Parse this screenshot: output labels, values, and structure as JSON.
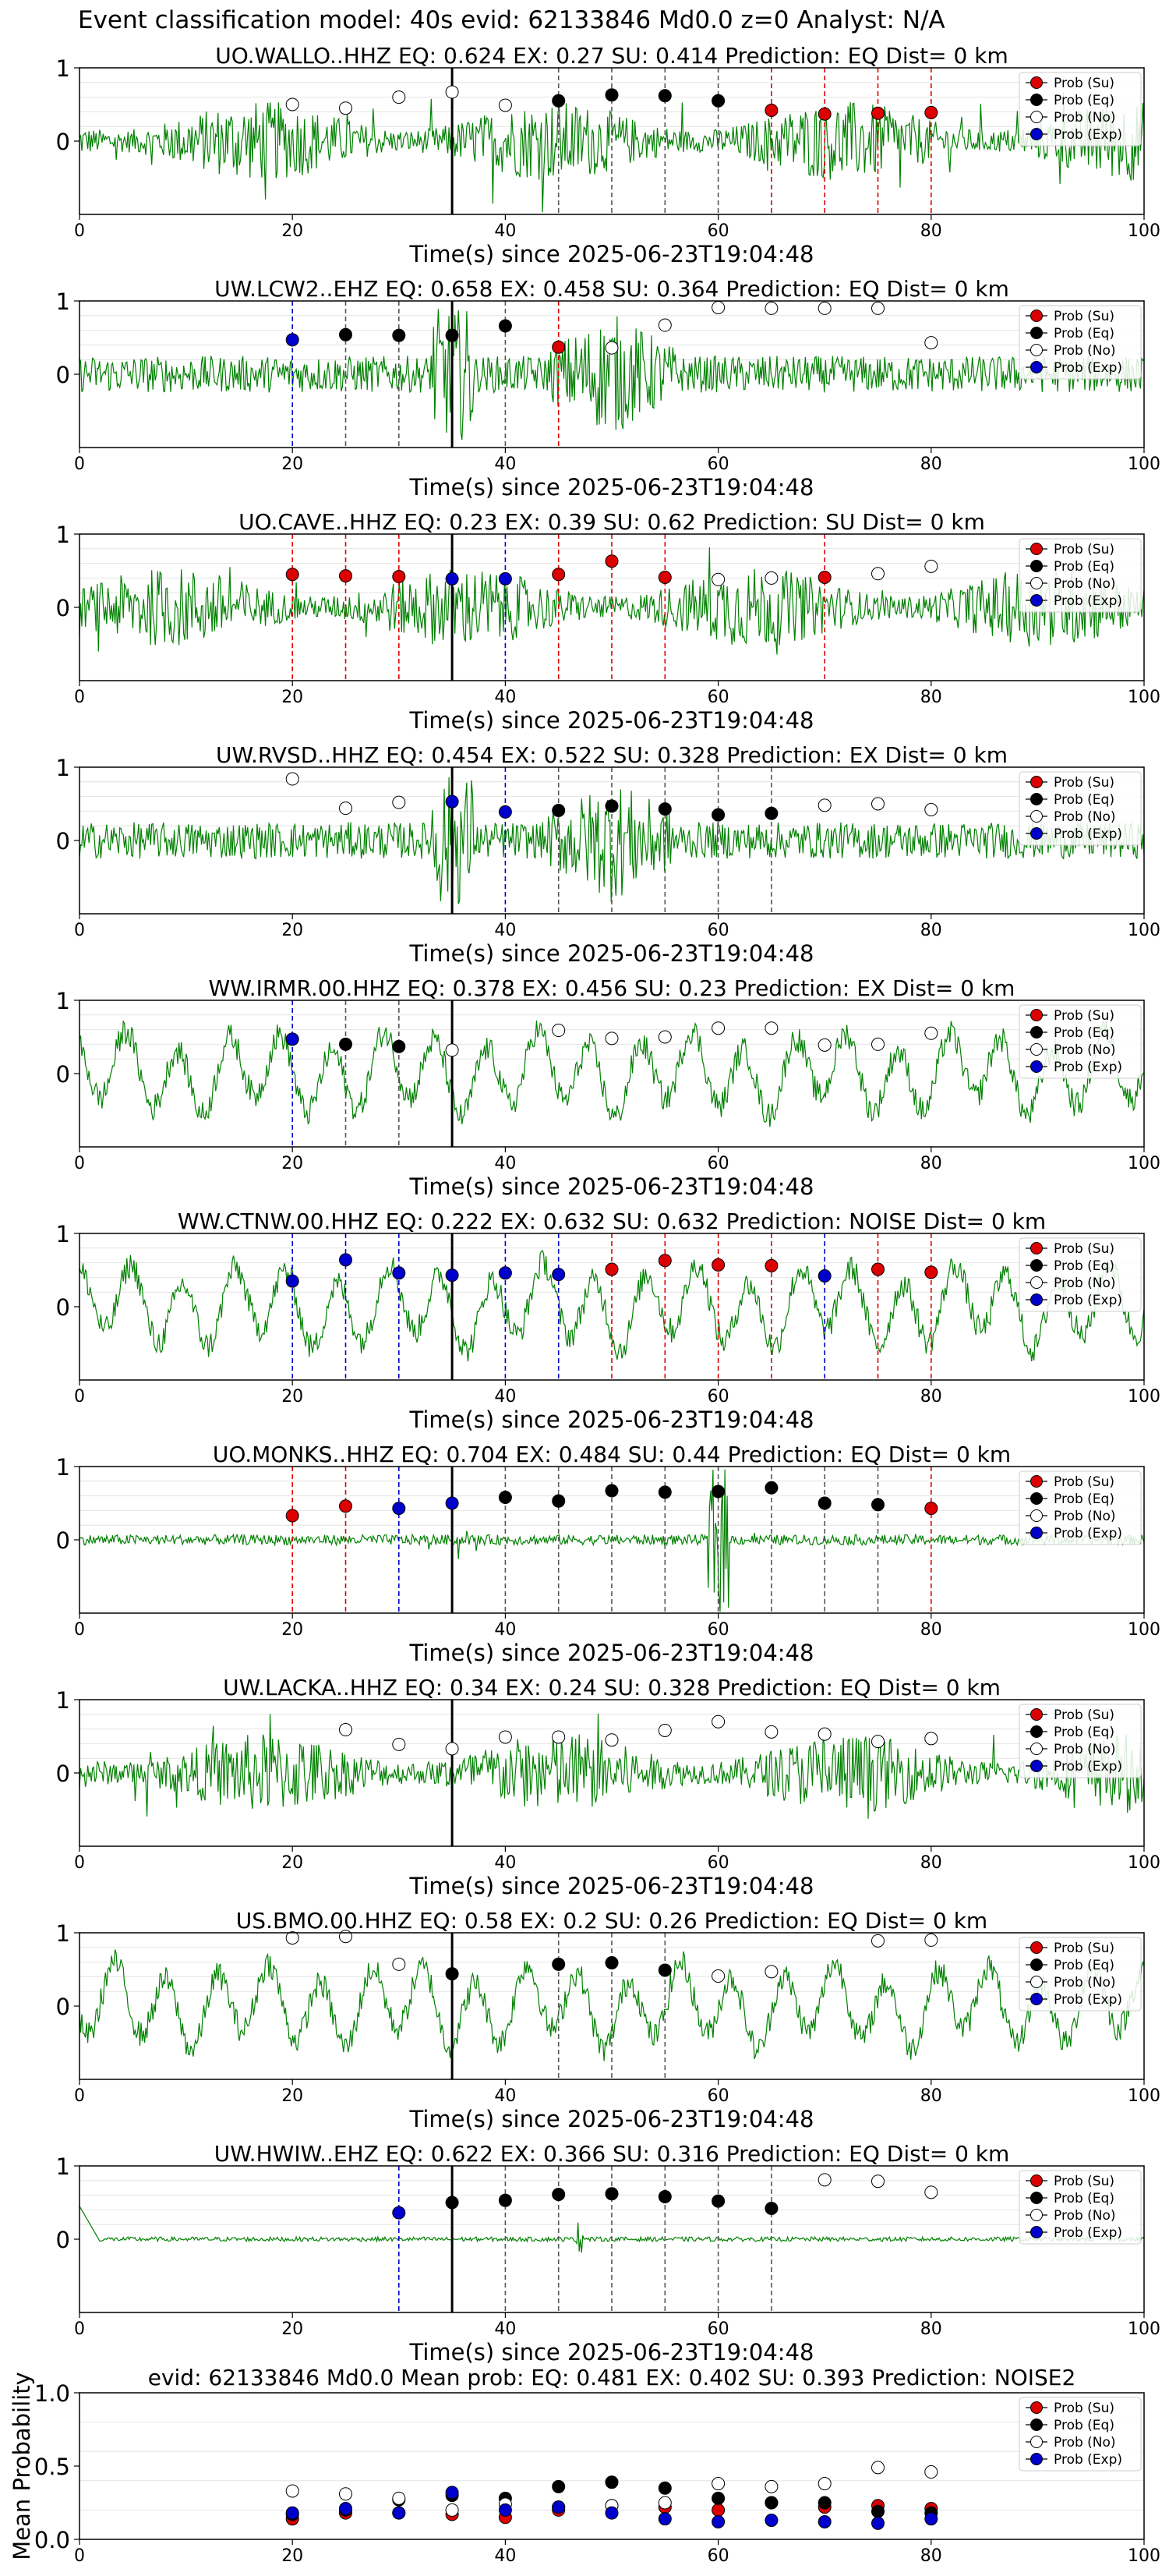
{
  "figure": {
    "suptitle": "Event classification model: 40s evid: 62133846 Md0.0 z=0 Analyst: N/A",
    "x_label": "Time(s) since 2025-06-23T19:04:48",
    "legend_entries": [
      "Prob (Su)",
      "Prob (Eq)",
      "Prob (No)",
      "Prob (Exp)"
    ],
    "colors": {
      "trace": "#008000",
      "su": "#dd0000",
      "eq": "#000000",
      "no": "#ffffff",
      "exp": "#0000cc",
      "event_line": "#000000"
    }
  },
  "chart_data": [
    {
      "type": "line",
      "title": "UO.WALLO..HHZ   EQ: 0.624  EX: 0.27  SU: 0.414   Prediction: EQ    Dist= 0 km",
      "x_ticks": [
        0,
        20,
        40,
        60,
        80,
        100
      ],
      "y_ticks": [
        0,
        1
      ],
      "xlim": [
        0,
        100
      ],
      "ylim": [
        -1,
        1
      ],
      "event_line_x": 35,
      "trace_style": "noise",
      "points": [
        {
          "x": 20,
          "y": 0.5,
          "cls": "no"
        },
        {
          "x": 25,
          "y": 0.45,
          "cls": "no"
        },
        {
          "x": 30,
          "y": 0.6,
          "cls": "no"
        },
        {
          "x": 35,
          "y": 0.67,
          "cls": "no"
        },
        {
          "x": 40,
          "y": 0.49,
          "cls": "no"
        },
        {
          "x": 45,
          "y": 0.55,
          "cls": "eq"
        },
        {
          "x": 50,
          "y": 0.63,
          "cls": "eq"
        },
        {
          "x": 55,
          "y": 0.62,
          "cls": "eq"
        },
        {
          "x": 60,
          "y": 0.55,
          "cls": "eq"
        },
        {
          "x": 65,
          "y": 0.42,
          "cls": "su"
        },
        {
          "x": 70,
          "y": 0.37,
          "cls": "su"
        },
        {
          "x": 75,
          "y": 0.38,
          "cls": "su"
        },
        {
          "x": 80,
          "y": 0.39,
          "cls": "su"
        }
      ]
    },
    {
      "type": "line",
      "title": "UW.LCW2..EHZ   EQ: 0.658  EX: 0.458  SU: 0.364   Prediction: EQ    Dist= 0 km",
      "x_ticks": [
        0,
        20,
        40,
        60,
        80,
        100
      ],
      "y_ticks": [
        0,
        1
      ],
      "xlim": [
        0,
        100
      ],
      "ylim": [
        -1,
        1
      ],
      "event_line_x": 35,
      "trace_style": "burst",
      "points": [
        {
          "x": 20,
          "y": 0.47,
          "cls": "exp"
        },
        {
          "x": 25,
          "y": 0.54,
          "cls": "eq"
        },
        {
          "x": 30,
          "y": 0.53,
          "cls": "eq"
        },
        {
          "x": 35,
          "y": 0.53,
          "cls": "eq"
        },
        {
          "x": 40,
          "y": 0.66,
          "cls": "eq"
        },
        {
          "x": 45,
          "y": 0.37,
          "cls": "su"
        },
        {
          "x": 50,
          "y": 0.36,
          "cls": "no"
        },
        {
          "x": 55,
          "y": 0.67,
          "cls": "no"
        },
        {
          "x": 60,
          "y": 0.91,
          "cls": "no"
        },
        {
          "x": 65,
          "y": 0.9,
          "cls": "no"
        },
        {
          "x": 70,
          "y": 0.9,
          "cls": "no"
        },
        {
          "x": 75,
          "y": 0.9,
          "cls": "no"
        },
        {
          "x": 80,
          "y": 0.43,
          "cls": "no"
        }
      ]
    },
    {
      "type": "line",
      "title": "UO.CAVE..HHZ   EQ: 0.23  EX: 0.39  SU: 0.62   Prediction: SU    Dist= 0 km",
      "x_ticks": [
        0,
        20,
        40,
        60,
        80,
        100
      ],
      "y_ticks": [
        0,
        1
      ],
      "xlim": [
        0,
        100
      ],
      "ylim": [
        -1,
        1
      ],
      "event_line_x": 35,
      "trace_style": "noise",
      "points": [
        {
          "x": 20,
          "y": 0.45,
          "cls": "su"
        },
        {
          "x": 25,
          "y": 0.43,
          "cls": "su"
        },
        {
          "x": 30,
          "y": 0.42,
          "cls": "su"
        },
        {
          "x": 35,
          "y": 0.39,
          "cls": "exp"
        },
        {
          "x": 40,
          "y": 0.39,
          "cls": "exp"
        },
        {
          "x": 45,
          "y": 0.45,
          "cls": "su"
        },
        {
          "x": 50,
          "y": 0.63,
          "cls": "su"
        },
        {
          "x": 55,
          "y": 0.41,
          "cls": "su"
        },
        {
          "x": 60,
          "y": 0.38,
          "cls": "no"
        },
        {
          "x": 65,
          "y": 0.4,
          "cls": "no"
        },
        {
          "x": 70,
          "y": 0.41,
          "cls": "su"
        },
        {
          "x": 75,
          "y": 0.46,
          "cls": "no"
        },
        {
          "x": 80,
          "y": 0.56,
          "cls": "no"
        }
      ]
    },
    {
      "type": "line",
      "title": "UW.RVSD..HHZ   EQ: 0.454  EX: 0.522  SU: 0.328   Prediction: EX    Dist= 0 km",
      "x_ticks": [
        0,
        20,
        40,
        60,
        80,
        100
      ],
      "y_ticks": [
        0,
        1
      ],
      "xlim": [
        0,
        100
      ],
      "ylim": [
        -1,
        1
      ],
      "event_line_x": 35,
      "trace_style": "burst",
      "points": [
        {
          "x": 20,
          "y": 0.84,
          "cls": "no"
        },
        {
          "x": 25,
          "y": 0.44,
          "cls": "no"
        },
        {
          "x": 30,
          "y": 0.52,
          "cls": "no"
        },
        {
          "x": 35,
          "y": 0.53,
          "cls": "exp"
        },
        {
          "x": 40,
          "y": 0.39,
          "cls": "exp"
        },
        {
          "x": 45,
          "y": 0.41,
          "cls": "eq"
        },
        {
          "x": 50,
          "y": 0.47,
          "cls": "eq"
        },
        {
          "x": 55,
          "y": 0.43,
          "cls": "eq"
        },
        {
          "x": 60,
          "y": 0.35,
          "cls": "eq"
        },
        {
          "x": 65,
          "y": 0.37,
          "cls": "eq"
        },
        {
          "x": 70,
          "y": 0.48,
          "cls": "no"
        },
        {
          "x": 75,
          "y": 0.5,
          "cls": "no"
        },
        {
          "x": 80,
          "y": 0.42,
          "cls": "no"
        }
      ]
    },
    {
      "type": "line",
      "title": "WW.IRMR.00.HHZ   EQ: 0.378  EX: 0.456  SU: 0.23   Prediction: EX    Dist= 0 km",
      "x_ticks": [
        0,
        20,
        40,
        60,
        80,
        100
      ],
      "y_ticks": [
        0,
        1
      ],
      "xlim": [
        0,
        100
      ],
      "ylim": [
        -1,
        1
      ],
      "event_line_x": 35,
      "trace_style": "wave",
      "points": [
        {
          "x": 20,
          "y": 0.47,
          "cls": "exp"
        },
        {
          "x": 25,
          "y": 0.4,
          "cls": "eq"
        },
        {
          "x": 30,
          "y": 0.37,
          "cls": "eq"
        },
        {
          "x": 35,
          "y": 0.32,
          "cls": "no"
        },
        {
          "x": 45,
          "y": 0.59,
          "cls": "no"
        },
        {
          "x": 50,
          "y": 0.48,
          "cls": "no"
        },
        {
          "x": 55,
          "y": 0.5,
          "cls": "no"
        },
        {
          "x": 60,
          "y": 0.62,
          "cls": "no"
        },
        {
          "x": 65,
          "y": 0.62,
          "cls": "no"
        },
        {
          "x": 70,
          "y": 0.39,
          "cls": "no"
        },
        {
          "x": 75,
          "y": 0.4,
          "cls": "no"
        },
        {
          "x": 80,
          "y": 0.55,
          "cls": "no"
        }
      ]
    },
    {
      "type": "line",
      "title": "WW.CTNW.00.HHZ   EQ: 0.222  EX: 0.632  SU: 0.632   Prediction: NOISE    Dist= 0 km",
      "x_ticks": [
        0,
        20,
        40,
        60,
        80,
        100
      ],
      "y_ticks": [
        0,
        1
      ],
      "xlim": [
        0,
        100
      ],
      "ylim": [
        -1,
        1
      ],
      "event_line_x": 35,
      "trace_style": "wave",
      "points": [
        {
          "x": 20,
          "y": 0.35,
          "cls": "exp"
        },
        {
          "x": 25,
          "y": 0.64,
          "cls": "exp"
        },
        {
          "x": 30,
          "y": 0.46,
          "cls": "exp"
        },
        {
          "x": 35,
          "y": 0.43,
          "cls": "exp"
        },
        {
          "x": 40,
          "y": 0.46,
          "cls": "exp"
        },
        {
          "x": 45,
          "y": 0.44,
          "cls": "exp"
        },
        {
          "x": 50,
          "y": 0.51,
          "cls": "su"
        },
        {
          "x": 55,
          "y": 0.63,
          "cls": "su"
        },
        {
          "x": 60,
          "y": 0.57,
          "cls": "su"
        },
        {
          "x": 65,
          "y": 0.56,
          "cls": "su"
        },
        {
          "x": 70,
          "y": 0.42,
          "cls": "exp"
        },
        {
          "x": 75,
          "y": 0.51,
          "cls": "su"
        },
        {
          "x": 80,
          "y": 0.47,
          "cls": "su"
        }
      ]
    },
    {
      "type": "line",
      "title": "UO.MONKS..HHZ   EQ: 0.704  EX: 0.484  SU: 0.44   Prediction: EQ    Dist= 0 km",
      "x_ticks": [
        0,
        20,
        40,
        60,
        80,
        100
      ],
      "y_ticks": [
        0,
        1
      ],
      "xlim": [
        0,
        100
      ],
      "ylim": [
        -1,
        1
      ],
      "event_line_x": 35,
      "trace_style": "quiet",
      "points": [
        {
          "x": 20,
          "y": 0.33,
          "cls": "su"
        },
        {
          "x": 25,
          "y": 0.46,
          "cls": "su"
        },
        {
          "x": 30,
          "y": 0.43,
          "cls": "exp"
        },
        {
          "x": 35,
          "y": 0.5,
          "cls": "exp"
        },
        {
          "x": 40,
          "y": 0.58,
          "cls": "eq"
        },
        {
          "x": 45,
          "y": 0.53,
          "cls": "eq"
        },
        {
          "x": 50,
          "y": 0.67,
          "cls": "eq"
        },
        {
          "x": 55,
          "y": 0.65,
          "cls": "eq"
        },
        {
          "x": 60,
          "y": 0.66,
          "cls": "eq"
        },
        {
          "x": 65,
          "y": 0.71,
          "cls": "eq"
        },
        {
          "x": 70,
          "y": 0.5,
          "cls": "eq"
        },
        {
          "x": 75,
          "y": 0.48,
          "cls": "eq"
        },
        {
          "x": 80,
          "y": 0.43,
          "cls": "su"
        }
      ]
    },
    {
      "type": "line",
      "title": "UW.LACKA..HHZ   EQ: 0.34  EX: 0.24  SU: 0.328   Prediction: EQ    Dist= 0 km",
      "x_ticks": [
        0,
        20,
        40,
        60,
        80,
        100
      ],
      "y_ticks": [
        0,
        1
      ],
      "xlim": [
        0,
        100
      ],
      "ylim": [
        -1,
        1
      ],
      "event_line_x": 35,
      "trace_style": "noise",
      "points": [
        {
          "x": 25,
          "y": 0.59,
          "cls": "no"
        },
        {
          "x": 30,
          "y": 0.39,
          "cls": "no"
        },
        {
          "x": 35,
          "y": 0.33,
          "cls": "no"
        },
        {
          "x": 40,
          "y": 0.49,
          "cls": "no"
        },
        {
          "x": 45,
          "y": 0.49,
          "cls": "no"
        },
        {
          "x": 50,
          "y": 0.45,
          "cls": "no"
        },
        {
          "x": 55,
          "y": 0.58,
          "cls": "no"
        },
        {
          "x": 60,
          "y": 0.7,
          "cls": "no"
        },
        {
          "x": 65,
          "y": 0.56,
          "cls": "no"
        },
        {
          "x": 70,
          "y": 0.53,
          "cls": "no"
        },
        {
          "x": 75,
          "y": 0.43,
          "cls": "no"
        },
        {
          "x": 80,
          "y": 0.47,
          "cls": "no"
        }
      ]
    },
    {
      "type": "line",
      "title": "US.BMO.00.HHZ   EQ: 0.58  EX: 0.2  SU: 0.26   Prediction: EQ    Dist= 0 km",
      "x_ticks": [
        0,
        20,
        40,
        60,
        80,
        100
      ],
      "y_ticks": [
        0,
        1
      ],
      "xlim": [
        0,
        100
      ],
      "ylim": [
        -1,
        1
      ],
      "event_line_x": 35,
      "trace_style": "wave",
      "points": [
        {
          "x": 20,
          "y": 0.93,
          "cls": "no"
        },
        {
          "x": 25,
          "y": 0.95,
          "cls": "no"
        },
        {
          "x": 30,
          "y": 0.57,
          "cls": "no"
        },
        {
          "x": 35,
          "y": 0.44,
          "cls": "eq"
        },
        {
          "x": 45,
          "y": 0.57,
          "cls": "eq"
        },
        {
          "x": 50,
          "y": 0.59,
          "cls": "eq"
        },
        {
          "x": 55,
          "y": 0.49,
          "cls": "eq"
        },
        {
          "x": 60,
          "y": 0.41,
          "cls": "no"
        },
        {
          "x": 65,
          "y": 0.47,
          "cls": "no"
        },
        {
          "x": 75,
          "y": 0.89,
          "cls": "no"
        },
        {
          "x": 80,
          "y": 0.9,
          "cls": "no"
        }
      ]
    },
    {
      "type": "line",
      "title": "UW.HWIW..EHZ   EQ: 0.622  EX: 0.366  SU: 0.316   Prediction: EQ    Dist= 0 km",
      "x_ticks": [
        0,
        20,
        40,
        60,
        80,
        100
      ],
      "y_ticks": [
        0,
        1
      ],
      "xlim": [
        0,
        100
      ],
      "ylim": [
        -1,
        1
      ],
      "event_line_x": 35,
      "trace_style": "flat",
      "points": [
        {
          "x": 30,
          "y": 0.36,
          "cls": "exp"
        },
        {
          "x": 35,
          "y": 0.5,
          "cls": "eq"
        },
        {
          "x": 40,
          "y": 0.53,
          "cls": "eq"
        },
        {
          "x": 45,
          "y": 0.61,
          "cls": "eq"
        },
        {
          "x": 50,
          "y": 0.62,
          "cls": "eq"
        },
        {
          "x": 55,
          "y": 0.58,
          "cls": "eq"
        },
        {
          "x": 60,
          "y": 0.52,
          "cls": "eq"
        },
        {
          "x": 65,
          "y": 0.42,
          "cls": "eq"
        },
        {
          "x": 70,
          "y": 0.81,
          "cls": "no"
        },
        {
          "x": 75,
          "y": 0.79,
          "cls": "no"
        },
        {
          "x": 80,
          "y": 0.64,
          "cls": "no"
        }
      ]
    },
    {
      "type": "scatter",
      "title": "evid: 62133846  Md0.0   Mean prob:   EQ: 0.481  EX: 0.402  SU: 0.393   Prediction: NOISE2",
      "ylabel": "Mean Probability",
      "x_ticks": [
        0,
        20,
        40,
        60,
        80,
        100
      ],
      "y_ticks": [
        "0.0",
        "0.5",
        "1.0"
      ],
      "xlim": [
        0,
        100
      ],
      "ylim": [
        0,
        1
      ],
      "series": [
        {
          "name": "Prob (Su)",
          "cls": "su",
          "x": [
            20,
            25,
            30,
            35,
            40,
            45,
            50,
            55,
            60,
            65,
            70,
            75,
            80
          ],
          "y": [
            0.14,
            0.18,
            0.18,
            0.17,
            0.15,
            0.2,
            0.23,
            0.22,
            0.2,
            0.25,
            0.22,
            0.23,
            0.21
          ]
        },
        {
          "name": "Prob (Eq)",
          "cls": "eq",
          "x": [
            20,
            25,
            30,
            35,
            40,
            45,
            50,
            55,
            60,
            65,
            70,
            75,
            80
          ],
          "y": [
            0.17,
            0.2,
            0.27,
            0.3,
            0.28,
            0.36,
            0.39,
            0.35,
            0.28,
            0.25,
            0.25,
            0.19,
            0.18
          ]
        },
        {
          "name": "Prob (No)",
          "cls": "no",
          "x": [
            20,
            25,
            30,
            35,
            40,
            45,
            50,
            55,
            60,
            65,
            70,
            75,
            80
          ],
          "y": [
            0.33,
            0.31,
            0.28,
            0.2,
            0.24,
            0.22,
            0.23,
            0.25,
            0.38,
            0.36,
            0.38,
            0.49,
            0.46
          ]
        },
        {
          "name": "Prob (Exp)",
          "cls": "exp",
          "x": [
            20,
            25,
            30,
            35,
            40,
            45,
            50,
            55,
            60,
            65,
            70,
            75,
            80
          ],
          "y": [
            0.18,
            0.21,
            0.18,
            0.32,
            0.2,
            0.22,
            0.18,
            0.14,
            0.12,
            0.13,
            0.12,
            0.11,
            0.14
          ]
        }
      ]
    }
  ]
}
